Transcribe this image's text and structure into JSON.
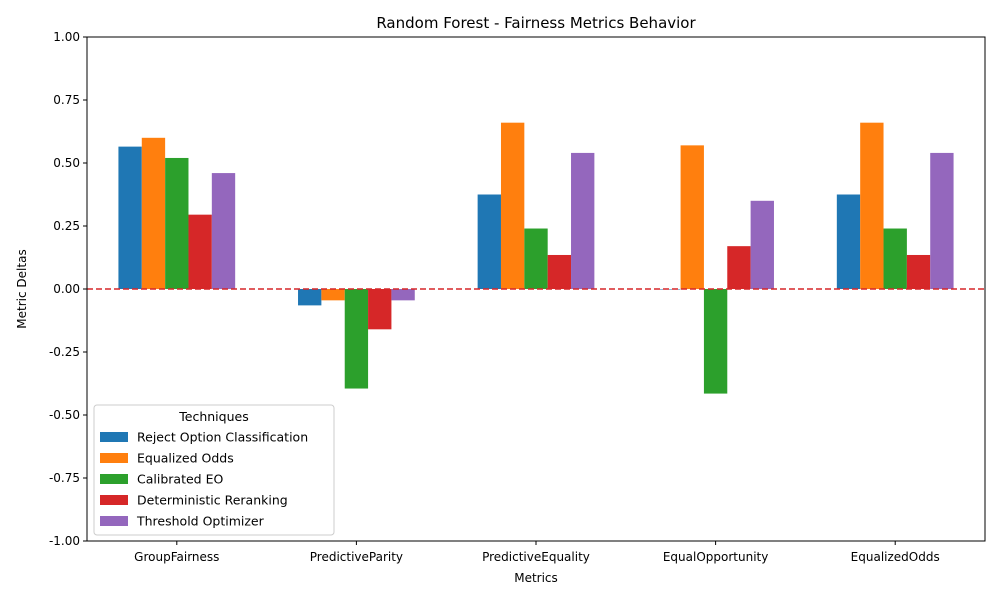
{
  "chart_data": {
    "type": "bar",
    "title": "Random Forest - Fairness Metrics Behavior",
    "xlabel": "Metrics",
    "ylabel": "Metric Deltas",
    "ylim": [
      -1.0,
      1.0
    ],
    "yticks": [
      "-1.00",
      "-0.75",
      "-0.50",
      "-0.25",
      "0.00",
      "0.25",
      "0.50",
      "0.75",
      "1.00"
    ],
    "categories": [
      "GroupFairness",
      "PredictiveParity",
      "PredictiveEquality",
      "EqualOpportunity",
      "EqualizedOdds"
    ],
    "series": [
      {
        "name": "Reject Option Classification",
        "color": "#1f77b4",
        "values": [
          0.565,
          -0.065,
          0.375,
          0.0,
          0.375
        ]
      },
      {
        "name": "Equalized Odds",
        "color": "#ff7f0e",
        "values": [
          0.6,
          -0.045,
          0.66,
          0.57,
          0.66
        ]
      },
      {
        "name": "Calibrated EO",
        "color": "#2ca02c",
        "values": [
          0.52,
          -0.395,
          0.24,
          -0.415,
          0.24
        ]
      },
      {
        "name": "Deterministic Reranking",
        "color": "#d62728",
        "values": [
          0.295,
          -0.16,
          0.135,
          0.17,
          0.135
        ]
      },
      {
        "name": "Threshold Optimizer",
        "color": "#9467bd",
        "values": [
          0.46,
          -0.045,
          0.54,
          0.35,
          0.54
        ]
      }
    ],
    "reference_line": {
      "y": 0.0,
      "color": "#d62728",
      "style": "dashed"
    },
    "legend": {
      "title": "Techniques",
      "placement": "lower-left"
    },
    "grid": false
  }
}
